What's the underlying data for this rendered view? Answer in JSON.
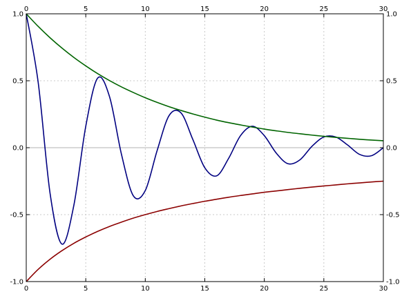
{
  "chart_data": {
    "type": "line",
    "title": "",
    "xlabel": "",
    "ylabel": "",
    "xlim": [
      0,
      30
    ],
    "ylim": [
      -1.0,
      1.0
    ],
    "grid": true,
    "x_ticks": [
      0,
      5,
      10,
      15,
      20,
      25,
      30
    ],
    "x_tick_labels": [
      "0",
      "5",
      "10",
      "15",
      "20",
      "25",
      "30"
    ],
    "y_ticks": [
      1.0,
      0.5,
      0.0,
      -0.5,
      -1.0
    ],
    "y_tick_labels": [
      "1.0",
      "0.5",
      "0.0",
      "-0.5",
      "-1.0"
    ],
    "x": [
      0,
      1,
      2,
      3,
      4,
      5,
      6,
      7,
      8,
      9,
      10,
      11,
      12,
      13,
      14,
      15,
      16,
      17,
      18,
      19,
      20,
      21,
      22,
      23,
      24,
      25,
      26,
      27,
      28,
      29,
      30
    ],
    "series": [
      {
        "color": "#000080",
        "values": [
          1.0,
          0.49,
          -0.34,
          -0.72,
          -0.43,
          0.16,
          0.52,
          0.38,
          -0.05,
          -0.36,
          -0.32,
          -0.02,
          0.24,
          0.26,
          0.06,
          -0.15,
          -0.21,
          -0.08,
          0.09,
          0.16,
          0.09,
          -0.04,
          -0.12,
          -0.09,
          0.01,
          0.08,
          0.08,
          0.02,
          -0.05,
          -0.06,
          0.0
        ]
      },
      {
        "color": "#006400",
        "values": [
          1.0,
          0.906,
          0.821,
          0.744,
          0.674,
          0.611,
          0.553,
          0.501,
          0.454,
          0.412,
          0.373,
          0.338,
          0.306,
          0.278,
          0.252,
          0.228,
          0.206,
          0.187,
          0.17,
          0.154,
          0.139,
          0.126,
          0.114,
          0.104,
          0.094,
          0.085,
          0.077,
          0.07,
          0.063,
          0.057,
          0.052
        ]
      },
      {
        "color": "#8b0000",
        "values": [
          -1.0,
          -0.909,
          -0.833,
          -0.769,
          -0.714,
          -0.667,
          -0.625,
          -0.588,
          -0.556,
          -0.526,
          -0.5,
          -0.476,
          -0.455,
          -0.435,
          -0.417,
          -0.4,
          -0.385,
          -0.37,
          -0.357,
          -0.345,
          -0.333,
          -0.323,
          -0.313,
          -0.303,
          -0.294,
          -0.286,
          -0.278,
          -0.27,
          -0.263,
          -0.256,
          -0.25
        ]
      }
    ]
  }
}
